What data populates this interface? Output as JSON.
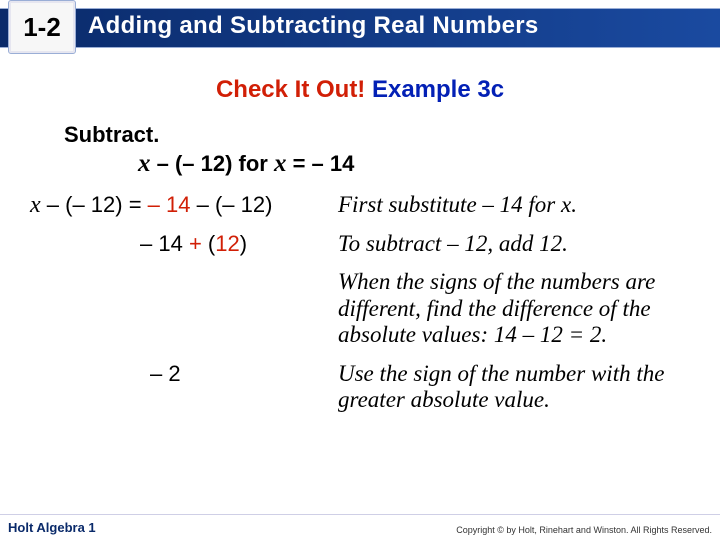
{
  "header": {
    "section_number": "1-2",
    "title": "Adding and Subtracting Real Numbers"
  },
  "example": {
    "label_red": "Check It Out!",
    "label_blue": " Example 3c"
  },
  "problem": {
    "instruction": "Subtract.",
    "expression_prefix": "x",
    "expression_rest": " – (– 12) for ",
    "expression_var": "x",
    "expression_eq": " = – 14"
  },
  "steps": [
    {
      "lhs_html": "<span class='x'>x</span> – (– 12) = <span class='red'>– 14</span> – (– 12)",
      "rhs": "First substitute – 14 for x."
    },
    {
      "lhs_html": "– 14 <span class='red'>+</span> (<span class='red'>12</span>)",
      "lhs_pad": "112px",
      "rhs": "To subtract – 12, add 12."
    },
    {
      "lhs_html": "",
      "rhs": "When the signs of the numbers are different, find the difference of the absolute values: 14 – 12 = 2."
    },
    {
      "lhs_html": "– 2",
      "lhs_pad": "122px",
      "rhs": "Use the sign of the number with the greater absolute value."
    }
  ],
  "footer": {
    "left": "Holt Algebra 1",
    "right": "Copyright © by Holt, Rinehart and Winston. All Rights Reserved."
  },
  "colors": {
    "header_bg_from": "#0a2a6a",
    "header_bg_to": "#1a4aa0",
    "red": "#d11f06",
    "blue": "#0320b5"
  }
}
